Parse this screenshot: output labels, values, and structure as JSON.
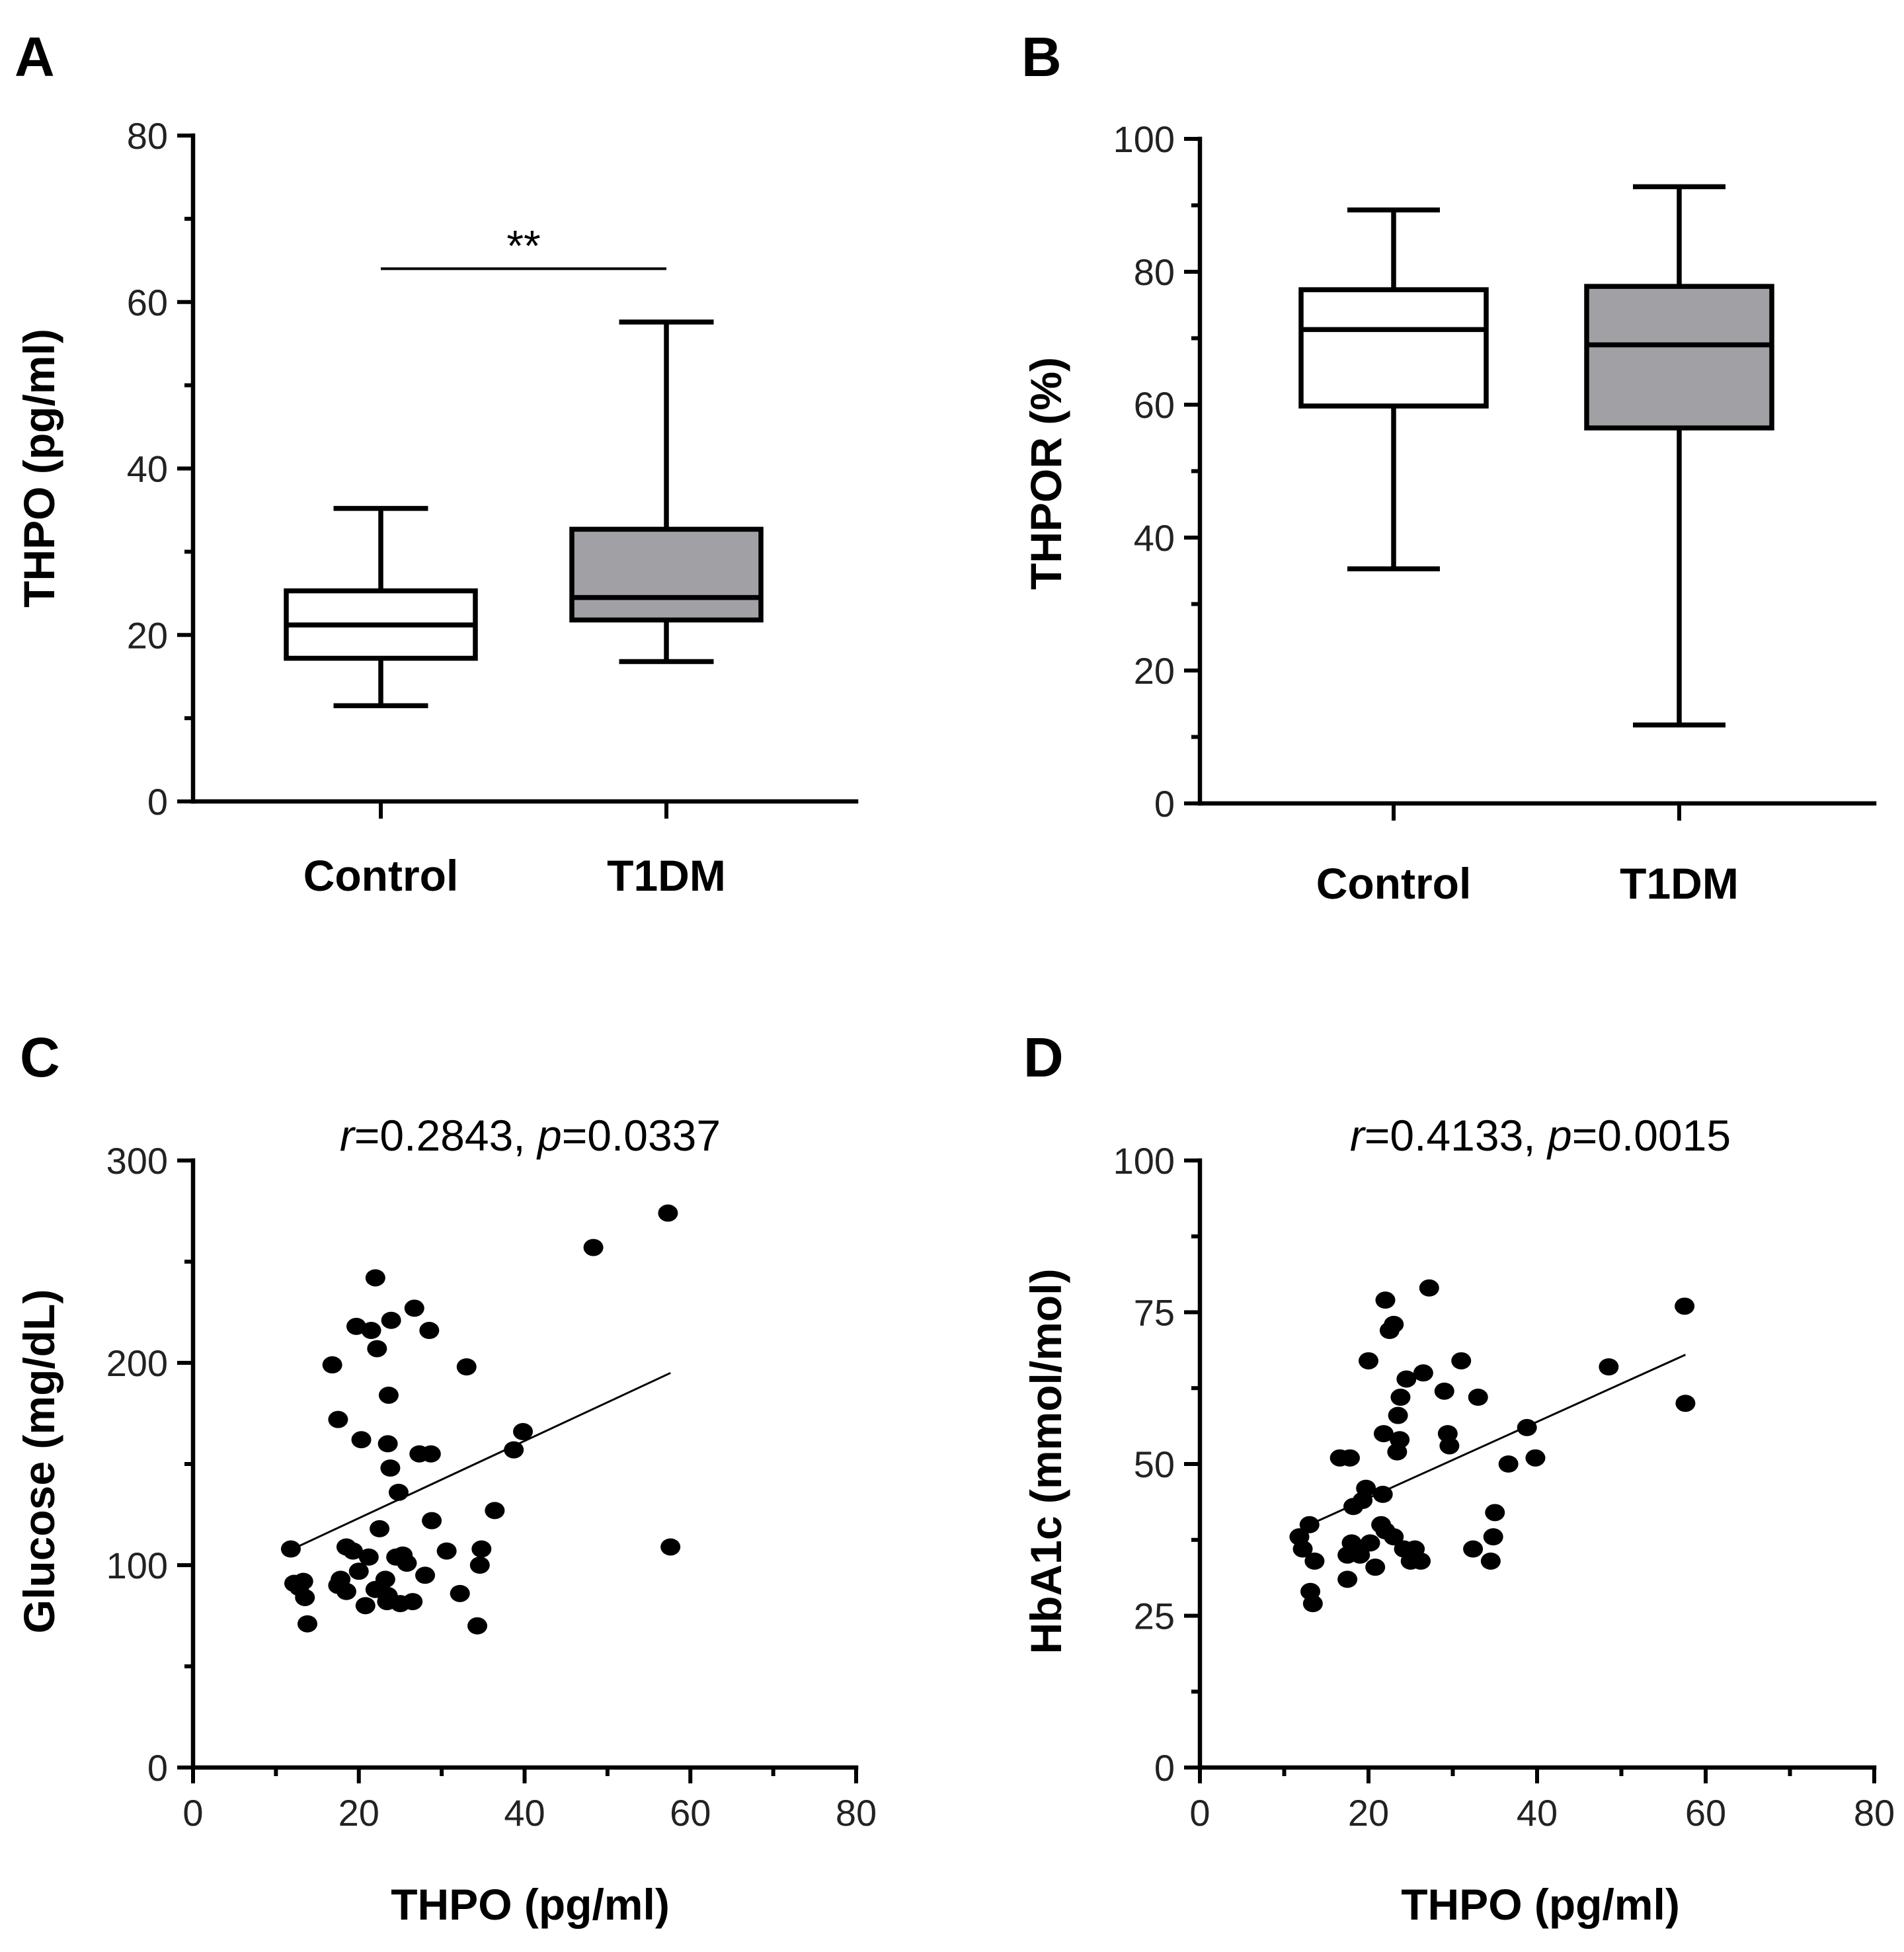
{
  "chart_data": [
    {
      "panel": "A",
      "type": "box",
      "ylabel": "THPO (pg/ml)",
      "ylim": [
        0,
        80
      ],
      "yticks": [
        0,
        20,
        40,
        60,
        80
      ],
      "categories": [
        "Control",
        "T1DM"
      ],
      "boxes": [
        {
          "name": "Control",
          "min": 11.5,
          "q1": 17.2,
          "median": 21.2,
          "q3": 25.3,
          "max": 35.2,
          "fill": "#ffffff"
        },
        {
          "name": "T1DM",
          "min": 16.8,
          "q1": 21.8,
          "median": 24.5,
          "q3": 32.7,
          "max": 57.6,
          "fill": "#a0a0a5"
        }
      ],
      "significance": {
        "label": "**",
        "y": 64
      }
    },
    {
      "panel": "B",
      "type": "box",
      "ylabel": "THPOR (%)",
      "ylim": [
        0,
        100
      ],
      "yticks": [
        0,
        20,
        40,
        60,
        80,
        100
      ],
      "categories": [
        "Control",
        "T1DM"
      ],
      "boxes": [
        {
          "name": "Control",
          "min": 35.3,
          "q1": 59.8,
          "median": 71.3,
          "q3": 77.3,
          "max": 89.3,
          "fill": "#ffffff"
        },
        {
          "name": "T1DM",
          "min": 11.8,
          "q1": 56.5,
          "median": 69.0,
          "q3": 77.8,
          "max": 92.8,
          "fill": "#a0a0a5"
        }
      ]
    },
    {
      "panel": "C",
      "type": "scatter",
      "xlabel": "THPO (pg/ml)",
      "ylabel": "Glucose (mg/dL)",
      "xlim": [
        0,
        80
      ],
      "ylim": [
        0,
        300
      ],
      "xticks": [
        0,
        20,
        40,
        60,
        80
      ],
      "yticks": [
        0,
        100,
        200,
        300
      ],
      "stat": {
        "r_symbol": "r",
        "r_value": "=0.2843, ",
        "p_symbol": "p",
        "p_value": "=0.0337"
      },
      "fit": {
        "x": [
          11.5,
          57.6
        ],
        "y": [
          107,
          195
        ]
      },
      "points": [
        [
          11.8,
          108
        ],
        [
          12.2,
          91
        ],
        [
          12.8,
          89
        ],
        [
          13.3,
          92
        ],
        [
          13.5,
          84
        ],
        [
          13.8,
          71
        ],
        [
          16.8,
          199
        ],
        [
          17.5,
          172
        ],
        [
          17.5,
          90
        ],
        [
          17.8,
          93
        ],
        [
          18.5,
          109
        ],
        [
          18.5,
          87
        ],
        [
          19.3,
          107
        ],
        [
          19.7,
          218
        ],
        [
          20.0,
          97
        ],
        [
          20.3,
          162
        ],
        [
          20.8,
          80
        ],
        [
          21.2,
          104
        ],
        [
          21.5,
          216
        ],
        [
          22.0,
          88
        ],
        [
          22.0,
          242
        ],
        [
          22.2,
          207
        ],
        [
          22.5,
          118
        ],
        [
          23.2,
          93
        ],
        [
          23.4,
          82
        ],
        [
          23.5,
          85
        ],
        [
          23.5,
          160
        ],
        [
          23.6,
          184
        ],
        [
          23.8,
          148
        ],
        [
          23.9,
          221
        ],
        [
          24.5,
          104
        ],
        [
          24.8,
          136
        ],
        [
          25.0,
          81
        ],
        [
          25.3,
          105
        ],
        [
          25.8,
          101
        ],
        [
          26.5,
          82
        ],
        [
          26.7,
          227
        ],
        [
          27.3,
          155
        ],
        [
          28.0,
          95
        ],
        [
          28.5,
          216
        ],
        [
          28.7,
          155
        ],
        [
          28.8,
          122
        ],
        [
          30.6,
          107
        ],
        [
          32.2,
          86
        ],
        [
          33.0,
          198
        ],
        [
          34.3,
          70
        ],
        [
          34.6,
          100
        ],
        [
          34.8,
          108
        ],
        [
          36.4,
          127
        ],
        [
          38.7,
          157
        ],
        [
          39.8,
          166
        ],
        [
          48.3,
          257
        ],
        [
          57.3,
          274
        ],
        [
          57.6,
          109
        ]
      ]
    },
    {
      "panel": "D",
      "type": "scatter",
      "xlabel": "THPO (pg/ml)",
      "ylabel": "HbA1c (mmol/mol)",
      "xlim": [
        0,
        80
      ],
      "ylim": [
        0,
        100
      ],
      "xticks": [
        0,
        20,
        40,
        60,
        80
      ],
      "yticks": [
        0,
        25,
        50,
        75,
        100
      ],
      "stat": {
        "r_symbol": "r",
        "r_value": "=0.4133, ",
        "p_symbol": "p",
        "p_value": "=0.0015"
      },
      "fit": {
        "x": [
          13.0,
          57.6
        ],
        "y": [
          40,
          68
        ]
      },
      "points": [
        [
          11.8,
          38
        ],
        [
          12.2,
          36
        ],
        [
          13.0,
          40
        ],
        [
          13.1,
          29
        ],
        [
          13.4,
          27
        ],
        [
          13.6,
          34
        ],
        [
          16.6,
          51
        ],
        [
          17.5,
          31
        ],
        [
          17.5,
          35
        ],
        [
          17.8,
          51
        ],
        [
          18.0,
          37
        ],
        [
          18.2,
          43
        ],
        [
          18.6,
          36
        ],
        [
          19.0,
          35
        ],
        [
          19.3,
          44
        ],
        [
          19.7,
          46
        ],
        [
          20.0,
          67
        ],
        [
          20.2,
          37
        ],
        [
          20.8,
          33
        ],
        [
          21.5,
          40
        ],
        [
          21.7,
          45
        ],
        [
          21.8,
          55
        ],
        [
          22.0,
          77
        ],
        [
          22.0,
          39
        ],
        [
          22.5,
          72
        ],
        [
          23.0,
          73
        ],
        [
          23.0,
          38
        ],
        [
          23.4,
          52
        ],
        [
          23.5,
          58
        ],
        [
          23.7,
          54
        ],
        [
          23.8,
          61
        ],
        [
          24.2,
          36
        ],
        [
          24.5,
          64
        ],
        [
          25.0,
          34
        ],
        [
          25.5,
          36
        ],
        [
          26.2,
          34
        ],
        [
          26.5,
          65
        ],
        [
          27.2,
          79
        ],
        [
          29.0,
          62
        ],
        [
          29.4,
          55
        ],
        [
          29.6,
          53
        ],
        [
          31.0,
          67
        ],
        [
          32.4,
          36
        ],
        [
          33.0,
          61
        ],
        [
          34.5,
          34
        ],
        [
          34.8,
          38
        ],
        [
          35.0,
          42
        ],
        [
          36.6,
          50
        ],
        [
          38.8,
          56
        ],
        [
          39.8,
          51
        ],
        [
          48.5,
          66
        ],
        [
          57.5,
          76
        ],
        [
          57.6,
          60
        ]
      ]
    }
  ]
}
